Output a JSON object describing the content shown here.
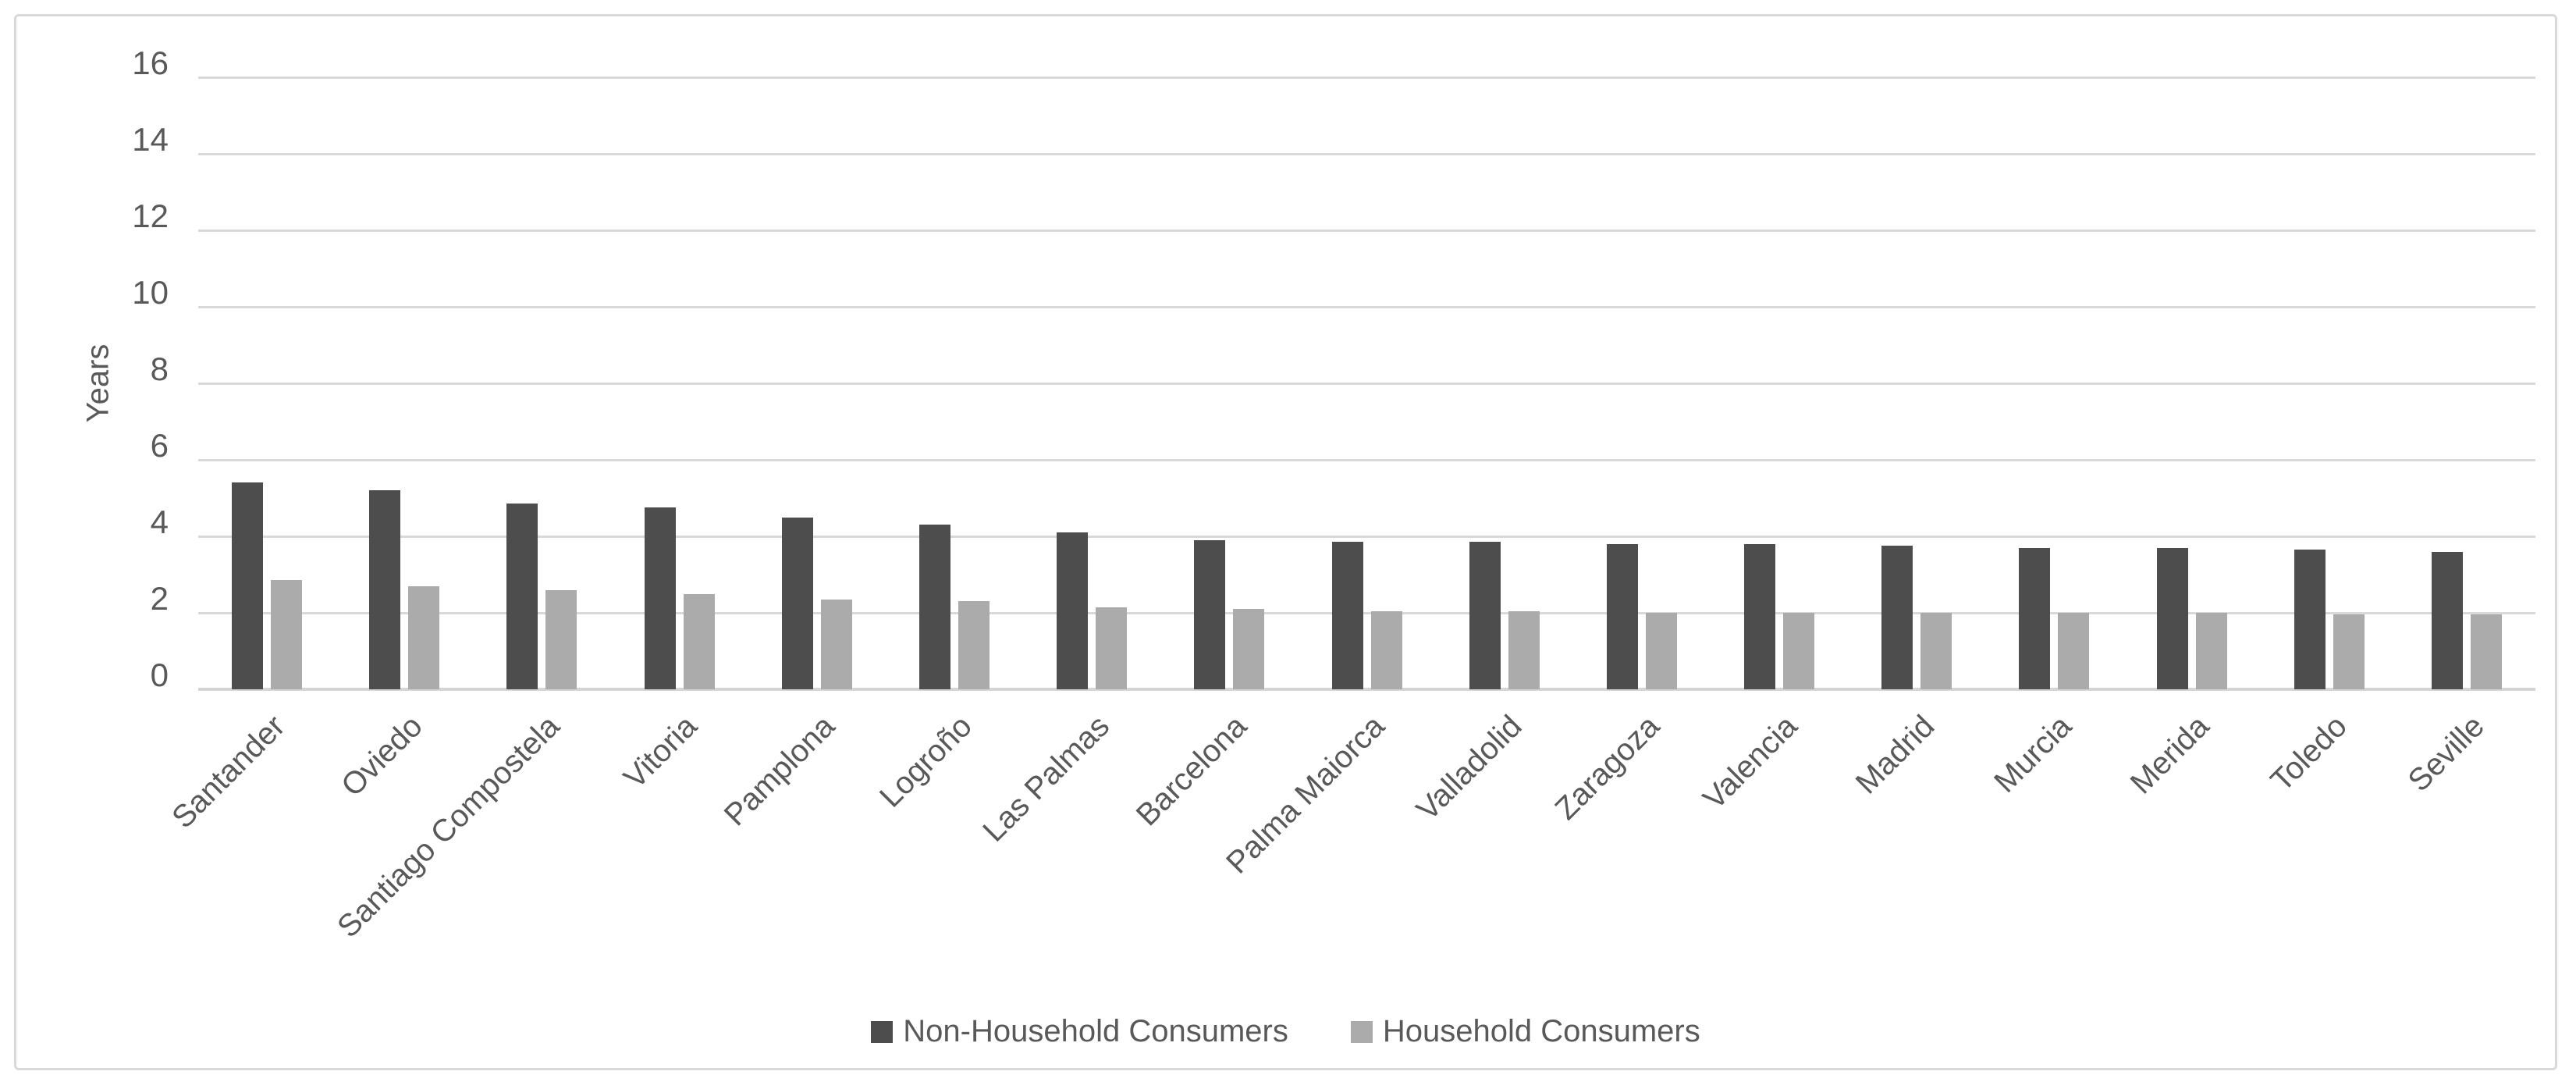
{
  "chart_data": {
    "type": "bar",
    "title": "",
    "xlabel": "",
    "ylabel": "Years",
    "ylim": [
      0,
      16
    ],
    "yticks": [
      0,
      2,
      4,
      6,
      8,
      10,
      12,
      14,
      16
    ],
    "grid": true,
    "legend_position": "bottom",
    "categories": [
      "Santander",
      "Oviedo",
      "Santiago Compostela",
      "Vitoria",
      "Pamplona",
      "Logroño",
      "Las Palmas",
      "Barcelona",
      "Palma Maiorca",
      "Valladolid",
      "Zaragoza",
      "Valencia",
      "Madrid",
      "Murcia",
      "Merida",
      "Toledo",
      "Seville"
    ],
    "series": [
      {
        "name": "Non-Household Consumers",
        "color": "#4d4d4d",
        "values": [
          5.4,
          5.2,
          4.85,
          4.75,
          4.5,
          4.3,
          4.1,
          3.9,
          3.85,
          3.85,
          3.8,
          3.8,
          3.75,
          3.7,
          3.7,
          3.65,
          3.6
        ]
      },
      {
        "name": "Household Consumers",
        "color": "#ababab",
        "values": [
          2.85,
          2.7,
          2.6,
          2.5,
          2.35,
          2.3,
          2.15,
          2.1,
          2.05,
          2.05,
          2.0,
          2.0,
          2.0,
          2.0,
          2.0,
          1.95,
          1.95
        ]
      }
    ]
  },
  "colors": {
    "gridline": "#d9d9d9",
    "axis_text": "#595959",
    "frame_border": "#d9d9d9",
    "background": "#ffffff"
  }
}
